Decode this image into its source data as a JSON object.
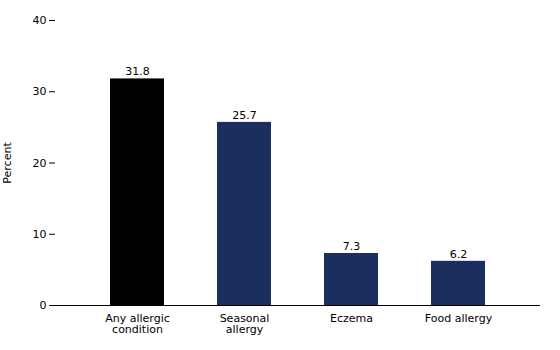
{
  "chart_data": {
    "type": "bar",
    "categories": [
      "Any allergic\ncondition",
      "Seasonal\nallergy",
      "Eczema",
      "Food allergy"
    ],
    "values": [
      31.8,
      25.7,
      7.3,
      6.2
    ],
    "value_labels": [
      "31.8",
      "25.7",
      "7.3",
      "6.2"
    ],
    "colors": [
      "#000000",
      "#1b2f5e",
      "#1b2f5e",
      "#1b2f5e"
    ],
    "ylabel": "Percent",
    "ylim": [
      0,
      40
    ],
    "yticks": [
      0,
      10,
      20,
      30,
      40
    ],
    "grid": false,
    "data_labels": true
  }
}
